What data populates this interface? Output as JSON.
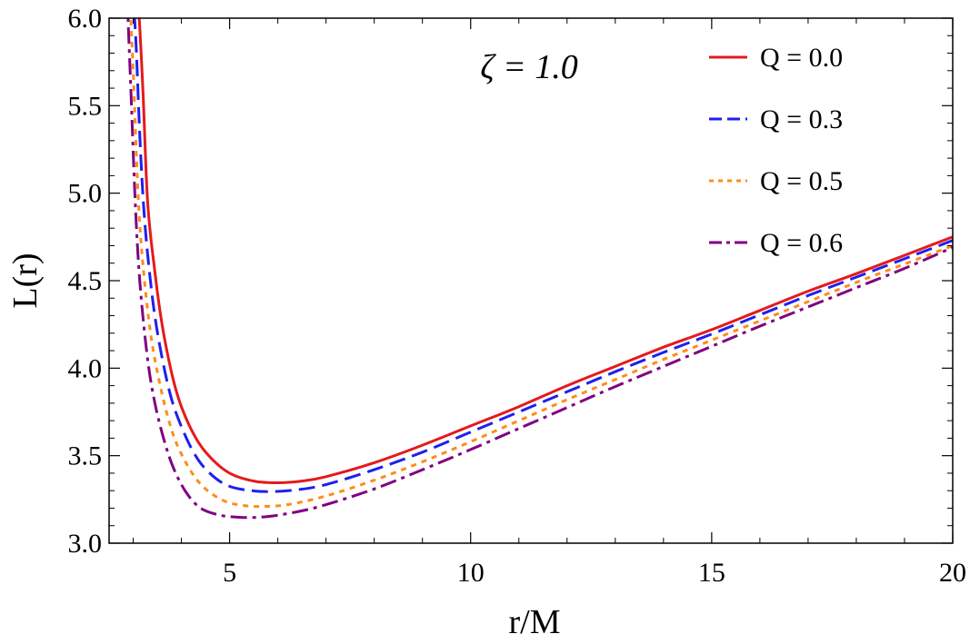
{
  "chart_data": {
    "type": "line",
    "xlabel": "r/M",
    "ylabel": "L(r)",
    "xlim": [
      2.5,
      20
    ],
    "ylim": [
      3.0,
      6.0
    ],
    "x_ticks": [
      "5",
      "10",
      "15",
      "20"
    ],
    "y_ticks": [
      "3.0",
      "3.5",
      "4.0",
      "4.5",
      "5.0",
      "5.5",
      "6.0"
    ],
    "annotation": "ζ = 1.0",
    "legend_position": "top-right",
    "grid": false,
    "series": [
      {
        "name": "Q = 0.0",
        "color": "#e41a1c",
        "style": "solid",
        "x": [
          3.0,
          3.1,
          3.2,
          3.3,
          3.45,
          3.6,
          3.8,
          4.0,
          4.3,
          4.6,
          5.0,
          5.5,
          6.0,
          6.5,
          7.0,
          8.0,
          9.0,
          10.0,
          11.0,
          12.0,
          13.0,
          14.0,
          15.0,
          16.0,
          17.0,
          18.0,
          19.0,
          20.0
        ],
        "y": [
          6.3,
          6.1,
          5.6,
          4.95,
          4.55,
          4.25,
          3.97,
          3.78,
          3.6,
          3.49,
          3.4,
          3.355,
          3.345,
          3.355,
          3.38,
          3.46,
          3.56,
          3.67,
          3.78,
          3.9,
          4.01,
          4.12,
          4.22,
          4.33,
          4.44,
          4.54,
          4.645,
          4.75
        ]
      },
      {
        "name": "Q = 0.3",
        "color": "#1f1ff0",
        "style": "dashed",
        "x": [
          2.95,
          3.05,
          3.15,
          3.25,
          3.4,
          3.55,
          3.75,
          3.95,
          4.25,
          4.55,
          4.95,
          5.45,
          5.9,
          6.4,
          7.0,
          8.0,
          9.0,
          10.0,
          11.0,
          12.0,
          13.0,
          14.0,
          15.0,
          16.0,
          17.0,
          18.0,
          19.0,
          20.0
        ],
        "y": [
          6.3,
          5.9,
          5.25,
          4.8,
          4.4,
          4.13,
          3.87,
          3.7,
          3.52,
          3.41,
          3.33,
          3.3,
          3.295,
          3.305,
          3.335,
          3.42,
          3.52,
          3.635,
          3.75,
          3.865,
          3.98,
          4.09,
          4.195,
          4.305,
          4.415,
          4.52,
          4.625,
          4.73
        ]
      },
      {
        "name": "Q = 0.5",
        "color": "#ff8c1a",
        "style": "dotted",
        "x": [
          2.9,
          3.0,
          3.1,
          3.2,
          3.35,
          3.5,
          3.7,
          3.9,
          4.2,
          4.5,
          4.9,
          5.3,
          5.7,
          6.2,
          7.0,
          8.0,
          9.0,
          10.0,
          11.0,
          12.0,
          13.0,
          14.0,
          15.0,
          16.0,
          17.0,
          18.0,
          19.0,
          20.0
        ],
        "y": [
          6.3,
          5.7,
          5.0,
          4.6,
          4.22,
          3.98,
          3.74,
          3.57,
          3.41,
          3.31,
          3.24,
          3.215,
          3.21,
          3.22,
          3.27,
          3.36,
          3.465,
          3.58,
          3.7,
          3.82,
          3.935,
          4.05,
          4.16,
          4.27,
          4.38,
          4.49,
          4.595,
          4.7
        ]
      },
      {
        "name": "Q = 0.6",
        "color": "#800080",
        "style": "dashdot",
        "x": [
          2.85,
          2.95,
          3.05,
          3.15,
          3.3,
          3.45,
          3.65,
          3.85,
          4.1,
          4.4,
          4.8,
          5.2,
          5.6,
          6.0,
          6.5,
          7.0,
          8.0,
          9.0,
          10.0,
          11.0,
          12.0,
          13.0,
          14.0,
          15.0,
          16.0,
          17.0,
          18.0,
          19.0,
          20.0
        ],
        "y": [
          6.3,
          5.6,
          4.9,
          4.45,
          4.05,
          3.8,
          3.58,
          3.42,
          3.29,
          3.2,
          3.16,
          3.148,
          3.148,
          3.16,
          3.185,
          3.22,
          3.31,
          3.42,
          3.535,
          3.655,
          3.775,
          3.895,
          4.01,
          4.125,
          4.24,
          4.35,
          4.46,
          4.57,
          4.69
        ]
      }
    ]
  }
}
